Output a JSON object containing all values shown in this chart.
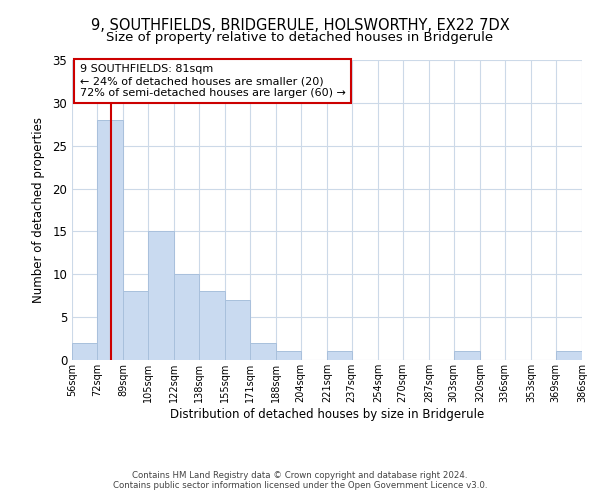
{
  "title": "9, SOUTHFIELDS, BRIDGERULE, HOLSWORTHY, EX22 7DX",
  "subtitle": "Size of property relative to detached houses in Bridgerule",
  "xlabel": "Distribution of detached houses by size in Bridgerule",
  "ylabel": "Number of detached properties",
  "bins": [
    56,
    72,
    89,
    105,
    122,
    138,
    155,
    171,
    188,
    204,
    221,
    237,
    254,
    270,
    287,
    303,
    320,
    336,
    353,
    369,
    386
  ],
  "counts": [
    2,
    28,
    8,
    15,
    10,
    8,
    7,
    2,
    1,
    0,
    1,
    0,
    0,
    0,
    0,
    1,
    0,
    0,
    0,
    1
  ],
  "bar_color": "#c9daf0",
  "bar_edge_color": "#a8c0dc",
  "vline_x": 81,
  "vline_color": "#cc0000",
  "ylim": [
    0,
    35
  ],
  "yticks": [
    0,
    5,
    10,
    15,
    20,
    25,
    30,
    35
  ],
  "annotation_title": "9 SOUTHFIELDS: 81sqm",
  "annotation_line1": "← 24% of detached houses are smaller (20)",
  "annotation_line2": "72% of semi-detached houses are larger (60) →",
  "annotation_box_color": "#ffffff",
  "annotation_box_edge": "#cc0000",
  "footnote1": "Contains HM Land Registry data © Crown copyright and database right 2024.",
  "footnote2": "Contains public sector information licensed under the Open Government Licence v3.0.",
  "background_color": "#ffffff",
  "grid_color": "#ccd9e8",
  "title_fontsize": 10.5,
  "subtitle_fontsize": 9.5,
  "tick_labels": [
    "56sqm",
    "72sqm",
    "89sqm",
    "105sqm",
    "122sqm",
    "138sqm",
    "155sqm",
    "171sqm",
    "188sqm",
    "204sqm",
    "221sqm",
    "237sqm",
    "254sqm",
    "270sqm",
    "287sqm",
    "303sqm",
    "320sqm",
    "336sqm",
    "353sqm",
    "369sqm",
    "386sqm"
  ]
}
